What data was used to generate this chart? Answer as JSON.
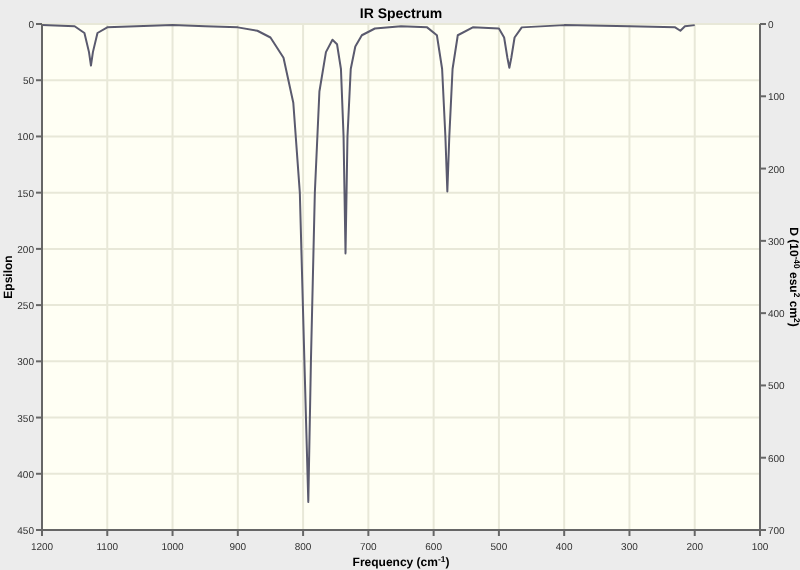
{
  "chart_data": {
    "type": "line",
    "title": "IR Spectrum",
    "xlabel": "Frequency (cm$^{-1}$)",
    "ylabel": "Epsilon",
    "y2label": "D (10$^{-40}$ esu$^{2}$ cm$^{2}$)",
    "x": [
      1200,
      1150,
      1135,
      1128,
      1125,
      1122,
      1115,
      1100,
      1000,
      950,
      900,
      870,
      850,
      830,
      815,
      805,
      798,
      792,
      788,
      782,
      775,
      765,
      755,
      748,
      742,
      738,
      735,
      732,
      727,
      720,
      710,
      690,
      650,
      610,
      595,
      587,
      582,
      579,
      576,
      571,
      563,
      540,
      500,
      492,
      487,
      484,
      481,
      476,
      465,
      400,
      300,
      230,
      222,
      215,
      200
    ],
    "series": [
      {
        "color": "#5a5a6e",
        "values": [
          1,
          2,
          8,
          25,
          37,
          25,
          8,
          3,
          1,
          2,
          3,
          6,
          12,
          30,
          70,
          150,
          300,
          425,
          300,
          150,
          60,
          25,
          14,
          18,
          40,
          100,
          204,
          100,
          40,
          20,
          10,
          4,
          2,
          3,
          10,
          40,
          100,
          149,
          100,
          40,
          10,
          3,
          4,
          12,
          30,
          39,
          30,
          12,
          3,
          1,
          2,
          3,
          6,
          2,
          1
        ]
      }
    ],
    "xlim": [
      1200,
      100
    ],
    "xticks": [
      1200,
      1100,
      1000,
      900,
      800,
      700,
      600,
      500,
      400,
      300,
      200,
      100
    ],
    "ylim": [
      450,
      0
    ],
    "yticks": [
      0,
      50,
      100,
      150,
      200,
      250,
      300,
      350,
      400,
      450
    ],
    "y2lim": [
      700,
      0
    ],
    "y2ticks": [
      0,
      100,
      200,
      300,
      400,
      500,
      600,
      700
    ],
    "grid": true,
    "marker": "none",
    "line_style": "solid"
  }
}
